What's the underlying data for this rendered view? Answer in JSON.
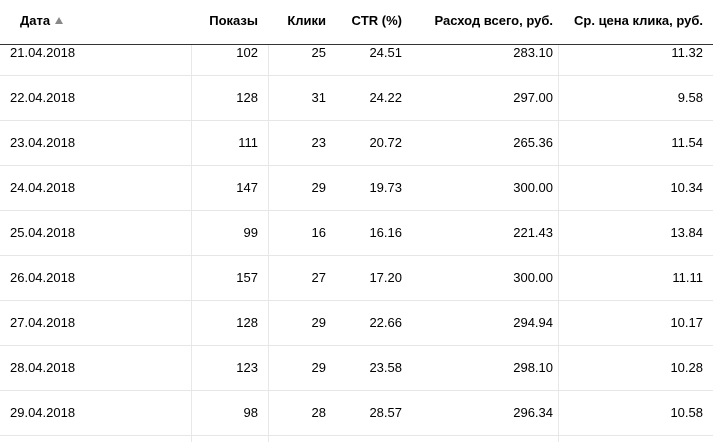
{
  "header": {
    "columns": [
      "Дата",
      "Показы",
      "Клики",
      "CTR (%)",
      "Расход всего, руб.",
      "Ср. цена клика, руб."
    ]
  },
  "table": {
    "rows": [
      [
        "21.04.2018",
        "102",
        "25",
        "24.51",
        "283.10",
        "11.32"
      ],
      [
        "22.04.2018",
        "128",
        "31",
        "24.22",
        "297.00",
        "9.58"
      ],
      [
        "23.04.2018",
        "111",
        "23",
        "20.72",
        "265.36",
        "11.54"
      ],
      [
        "24.04.2018",
        "147",
        "29",
        "19.73",
        "300.00",
        "10.34"
      ],
      [
        "25.04.2018",
        "99",
        "16",
        "16.16",
        "221.43",
        "13.84"
      ],
      [
        "26.04.2018",
        "157",
        "27",
        "17.20",
        "300.00",
        "11.11"
      ],
      [
        "27.04.2018",
        "128",
        "29",
        "22.66",
        "294.94",
        "10.17"
      ],
      [
        "28.04.2018",
        "123",
        "29",
        "23.58",
        "298.10",
        "10.28"
      ],
      [
        "29.04.2018",
        "98",
        "28",
        "28.57",
        "296.34",
        "10.58"
      ]
    ]
  }
}
